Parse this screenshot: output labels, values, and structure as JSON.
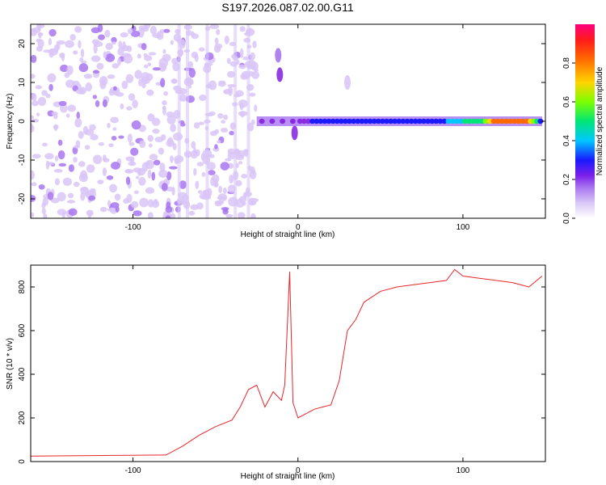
{
  "title": "S197.2026.087.02.00.G11",
  "colors": {
    "axis": "#000000",
    "snr_line": "#e8262a",
    "background": "#ffffff",
    "colormap": [
      "#ffffff",
      "#d9c6f7",
      "#a875f0",
      "#8a2be2",
      "#1a1aff",
      "#00c8ff",
      "#00e676",
      "#7cff00",
      "#ffd400",
      "#ff6a00",
      "#ff1a1a",
      "#ff0080"
    ]
  },
  "chart_data": [
    {
      "type": "heatmap",
      "title": "",
      "xlabel": "Height of straight line (km)",
      "ylabel": "Frequency (Hz)",
      "xlim": [
        -162,
        150
      ],
      "ylim": [
        -25,
        25
      ],
      "xticks": [
        -100,
        0,
        100
      ],
      "yticks": [
        -20,
        -10,
        0,
        10,
        20
      ],
      "colorbar": {
        "label": "Normalized spectral amplitude",
        "range": [
          0,
          1
        ],
        "ticks": [
          0.0,
          0.2,
          0.4,
          0.6,
          0.8
        ]
      },
      "noise_region_km": [
        -162,
        -25
      ],
      "blank_region_km": [
        -22,
        0
      ],
      "carrier_track": {
        "frequency_hz": 0,
        "x_km": [
          -25,
          0,
          10,
          20,
          30,
          40,
          50,
          60,
          70,
          80,
          90,
          100,
          110,
          120,
          130,
          140,
          148
        ],
        "amplitude": [
          0.3,
          0.25,
          0.33,
          0.35,
          0.34,
          0.33,
          0.33,
          0.35,
          0.34,
          0.36,
          0.4,
          0.5,
          0.55,
          0.85,
          0.82,
          0.8,
          0.35
        ]
      },
      "features": [
        {
          "x_km": -11,
          "freq_hz": 12,
          "amplitude": 0.25
        },
        {
          "x_km": -12,
          "freq_hz": 17,
          "amplitude": 0.18
        },
        {
          "x_km": -2,
          "freq_hz": -3,
          "amplitude": 0.28
        },
        {
          "x_km": 30,
          "freq_hz": 10,
          "amplitude": 0.05
        }
      ]
    },
    {
      "type": "line",
      "title": "",
      "xlabel": "Height of straight line (km)",
      "ylabel": "SNR (10 * v/v)",
      "xlim": [
        -162,
        150
      ],
      "ylim": [
        0,
        900
      ],
      "xticks": [
        -100,
        0,
        100
      ],
      "yticks": [
        0,
        200,
        400,
        600,
        800
      ],
      "series": [
        {
          "name": "SNR",
          "x": [
            -162,
            -80,
            -70,
            -60,
            -50,
            -40,
            -35,
            -30,
            -25,
            -20,
            -15,
            -10,
            -8,
            -5,
            -3,
            0,
            5,
            10,
            15,
            20,
            25,
            30,
            35,
            40,
            50,
            60,
            70,
            80,
            90,
            95,
            100,
            110,
            120,
            130,
            140,
            148
          ],
          "values": [
            25,
            30,
            70,
            120,
            160,
            190,
            250,
            330,
            350,
            250,
            320,
            280,
            350,
            870,
            270,
            200,
            220,
            240,
            250,
            260,
            370,
            600,
            650,
            730,
            780,
            800,
            810,
            820,
            830,
            880,
            850,
            840,
            830,
            820,
            800,
            850
          ]
        }
      ]
    }
  ]
}
